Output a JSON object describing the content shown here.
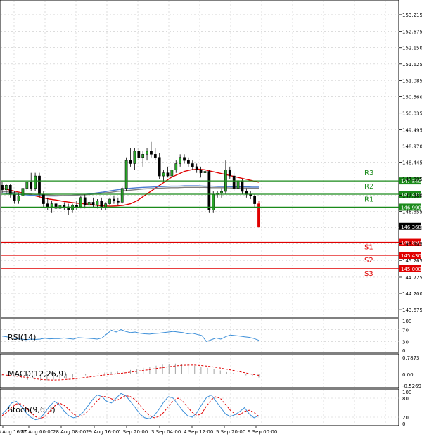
{
  "chart_data": [
    {
      "type": "candlestick",
      "panel": "price",
      "y_axis_ticks": [
        "153.215",
        "152.675",
        "152.150",
        "151.625",
        "151.085",
        "150.560",
        "150.035",
        "149.495",
        "148.970",
        "148.445",
        "147.905",
        "147.380",
        "146.855",
        "146.330",
        "145.805",
        "145.265",
        "144.725",
        "144.200",
        "143.675"
      ],
      "ylim": [
        143.45,
        153.6
      ],
      "current_price": "146.368",
      "levels": [
        {
          "name": "R3",
          "value": "147.840",
          "value_num": 147.84,
          "color": "#1a8a1a"
        },
        {
          "name": "R2",
          "value": "147.410",
          "value_num": 147.41,
          "color": "#1a8a1a"
        },
        {
          "name": "R1",
          "value": "146.990",
          "value_num": 146.99,
          "color": "#1a8a1a"
        },
        {
          "name": "S1",
          "value": "145.850",
          "value_num": 145.85,
          "color": "#e00000"
        },
        {
          "name": "S2",
          "value": "145.430",
          "value_num": 145.43,
          "color": "#e00000"
        },
        {
          "name": "S3",
          "value": "145.000",
          "value_num": 145.0,
          "color": "#e00000"
        }
      ],
      "x_tick_labels": [
        "26 Aug 16:00",
        "27 Aug 00:00",
        "28 Aug 08:00",
        "29 Aug 16:00",
        "1 Sep 20:00",
        "3 Sep 04:00",
        "4 Sep 12:00",
        "5 Sep 20:00",
        "9 Sep 00:00"
      ],
      "candles": [
        [
          147.7,
          147.8,
          147.45,
          147.55
        ],
        [
          147.55,
          147.75,
          147.4,
          147.7
        ],
        [
          147.7,
          147.75,
          147.3,
          147.4
        ],
        [
          147.4,
          147.5,
          147.1,
          147.2
        ],
        [
          147.2,
          147.45,
          147.1,
          147.35
        ],
        [
          147.35,
          147.7,
          147.3,
          147.6
        ],
        [
          147.6,
          147.85,
          147.5,
          147.8
        ],
        [
          147.8,
          148.1,
          147.5,
          147.6
        ],
        [
          147.6,
          148.1,
          147.5,
          148.0
        ],
        [
          148.0,
          148.1,
          147.3,
          147.4
        ],
        [
          147.4,
          147.5,
          147.0,
          147.1
        ],
        [
          147.1,
          147.3,
          146.9,
          147.0
        ],
        [
          147.0,
          147.2,
          146.8,
          147.1
        ],
        [
          147.1,
          147.2,
          146.85,
          146.95
        ],
        [
          146.95,
          147.1,
          146.8,
          147.05
        ],
        [
          147.05,
          147.15,
          146.9,
          147.0
        ],
        [
          147.0,
          147.1,
          146.75,
          146.9
        ],
        [
          146.9,
          147.1,
          146.8,
          147.05
        ],
        [
          147.05,
          147.2,
          146.9,
          147.0
        ],
        [
          147.0,
          147.35,
          146.95,
          147.3
        ],
        [
          147.3,
          147.4,
          146.95,
          147.05
        ],
        [
          147.05,
          147.2,
          146.9,
          147.15
        ],
        [
          147.15,
          147.3,
          147.0,
          147.05
        ],
        [
          147.05,
          147.25,
          146.95,
          147.2
        ],
        [
          147.2,
          147.3,
          146.9,
          147.0
        ],
        [
          147.0,
          147.15,
          146.9,
          147.1
        ],
        [
          147.1,
          147.3,
          147.05,
          147.25
        ],
        [
          147.25,
          147.35,
          147.1,
          147.2
        ],
        [
          147.2,
          147.3,
          147.05,
          147.15
        ],
        [
          147.15,
          147.65,
          147.1,
          147.6
        ],
        [
          147.6,
          148.6,
          147.5,
          148.5
        ],
        [
          148.5,
          148.9,
          148.3,
          148.4
        ],
        [
          148.4,
          148.9,
          148.2,
          148.8
        ],
        [
          148.8,
          148.9,
          148.5,
          148.6
        ],
        [
          148.6,
          148.8,
          148.3,
          148.7
        ],
        [
          148.7,
          148.9,
          148.5,
          148.8
        ],
        [
          148.8,
          149.1,
          148.6,
          148.7
        ],
        [
          148.7,
          148.9,
          148.5,
          148.6
        ],
        [
          148.6,
          148.75,
          147.9,
          148.0
        ],
        [
          148.0,
          148.2,
          147.8,
          148.1
        ],
        [
          148.1,
          148.3,
          147.95,
          148.0
        ],
        [
          148.0,
          148.3,
          147.9,
          148.2
        ],
        [
          148.2,
          148.5,
          148.1,
          148.4
        ],
        [
          148.4,
          148.7,
          148.3,
          148.6
        ],
        [
          148.6,
          148.7,
          148.4,
          148.5
        ],
        [
          148.5,
          148.6,
          148.3,
          148.4
        ],
        [
          148.4,
          148.5,
          148.2,
          148.3
        ],
        [
          148.3,
          148.4,
          148.1,
          148.2
        ],
        [
          148.2,
          148.3,
          147.95,
          148.1
        ],
        [
          148.1,
          148.25,
          147.9,
          148.15
        ],
        [
          148.15,
          148.2,
          146.8,
          146.9
        ],
        [
          146.9,
          147.5,
          146.8,
          147.4
        ],
        [
          147.4,
          147.5,
          147.3,
          147.45
        ],
        [
          147.45,
          147.6,
          147.3,
          147.5
        ],
        [
          147.5,
          148.5,
          147.4,
          148.2
        ],
        [
          148.2,
          148.3,
          147.9,
          148.0
        ],
        [
          148.0,
          148.1,
          147.5,
          147.6
        ],
        [
          147.6,
          147.9,
          147.5,
          147.85
        ],
        [
          147.85,
          147.9,
          147.4,
          147.5
        ],
        [
          147.5,
          147.6,
          147.3,
          147.4
        ],
        [
          147.4,
          147.5,
          147.25,
          147.35
        ],
        [
          147.35,
          147.4,
          147.0,
          147.1
        ],
        [
          147.1,
          147.2,
          146.33,
          146.368
        ]
      ],
      "moving_averages": [
        {
          "color": "#e00000",
          "values": [
            147.6,
            147.55,
            147.5,
            147.45,
            147.4,
            147.35,
            147.3,
            147.25,
            147.22,
            147.18,
            147.15,
            147.12,
            147.1,
            147.08,
            147.05,
            147.03,
            147.02,
            147.03,
            147.05,
            147.1,
            147.2,
            147.35,
            147.5,
            147.65,
            147.8,
            147.95,
            148.05,
            148.15,
            148.2,
            148.22,
            148.2,
            148.15,
            148.1,
            148.05,
            148.0,
            147.95,
            147.9,
            147.85,
            147.8
          ]
        },
        {
          "color": "#4a7bd0",
          "values": [
            147.45,
            147.43,
            147.41,
            147.4,
            147.38,
            147.37,
            147.36,
            147.35,
            147.35,
            147.36,
            147.37,
            147.38,
            147.4,
            147.42,
            147.45,
            147.48,
            147.52,
            147.55,
            147.58,
            147.6,
            147.62,
            147.63,
            147.64,
            147.65,
            147.66,
            147.67,
            147.67,
            147.68,
            147.68,
            147.68,
            147.67,
            147.67,
            147.66,
            147.66,
            147.65,
            147.65,
            147.65,
            147.64,
            147.64
          ]
        },
        {
          "color": "#808080",
          "values": [
            147.5,
            147.48,
            147.46,
            147.44,
            147.42,
            147.4,
            147.39,
            147.38,
            147.37,
            147.37,
            147.37,
            147.38,
            147.39,
            147.4,
            147.42,
            147.45,
            147.47,
            147.5,
            147.52,
            147.54,
            147.56,
            147.58,
            147.59,
            147.6,
            147.61,
            147.62,
            147.62,
            147.63,
            147.63,
            147.63,
            147.63,
            147.62,
            147.62,
            147.62,
            147.61,
            147.61,
            147.61,
            147.6,
            147.6
          ]
        }
      ]
    },
    {
      "type": "line",
      "panel": "rsi",
      "label": "RSI(14)",
      "y_axis_ticks": [
        "100",
        "70",
        "30",
        "0"
      ],
      "ylim": [
        0,
        100
      ],
      "values": [
        48,
        46,
        42,
        40,
        38,
        36,
        38,
        37,
        38,
        41,
        39,
        40,
        40,
        42,
        40,
        38,
        43,
        42,
        41,
        40,
        38,
        42,
        55,
        68,
        62,
        70,
        64,
        60,
        62,
        58,
        56,
        55,
        57,
        58,
        60,
        62,
        64,
        62,
        60,
        56,
        58,
        54,
        50,
        30,
        36,
        42,
        38,
        46,
        52,
        50,
        48,
        46,
        44,
        40,
        34
      ]
    },
    {
      "type": "histogram",
      "panel": "macd",
      "label": "MACD(12,26,9)",
      "y_axis_ticks": [
        "0.7873",
        "0.00",
        "-0.5269"
      ],
      "ylim": [
        -0.5269,
        0.7873
      ],
      "values": [
        -0.05,
        -0.1,
        -0.15,
        -0.2,
        -0.25,
        -0.28,
        -0.3,
        -0.28,
        -0.25,
        -0.22,
        -0.2,
        -0.15,
        -0.1,
        -0.05,
        0.0,
        0.05,
        0.08,
        0.1,
        0.12,
        0.15,
        0.2,
        0.25,
        0.3,
        0.35,
        0.4,
        0.45,
        0.48,
        0.5,
        0.48,
        0.45,
        0.4,
        0.35,
        0.3,
        0.25,
        0.18,
        0.1,
        0.05,
        0.0,
        -0.05,
        -0.1,
        -0.15
      ],
      "signal": [
        -0.02,
        -0.05,
        -0.08,
        -0.12,
        -0.16,
        -0.2,
        -0.24,
        -0.26,
        -0.27,
        -0.26,
        -0.24,
        -0.22,
        -0.19,
        -0.15,
        -0.11,
        -0.07,
        -0.03,
        0.0,
        0.03,
        0.06,
        0.1,
        0.14,
        0.18,
        0.22,
        0.27,
        0.31,
        0.35,
        0.39,
        0.42,
        0.43,
        0.43,
        0.41,
        0.38,
        0.34,
        0.29,
        0.24,
        0.18,
        0.12,
        0.06,
        0.0,
        -0.05
      ]
    },
    {
      "type": "line",
      "panel": "stoch",
      "label": "Stoch(9,6,3)",
      "y_axis_ticks": [
        "100",
        "80",
        "20",
        "0"
      ],
      "ylim": [
        0,
        100
      ],
      "series": [
        {
          "color": "#3b8ed8",
          "dash": false,
          "values": [
            30,
            45,
            65,
            70,
            55,
            35,
            20,
            12,
            15,
            35,
            55,
            70,
            60,
            40,
            25,
            18,
            22,
            35,
            55,
            75,
            90,
            85,
            70,
            65,
            80,
            95,
            88,
            70,
            50,
            30,
            18,
            15,
            25,
            45,
            68,
            85,
            80,
            60,
            40,
            25,
            20,
            35,
            60,
            82,
            90,
            70,
            50,
            30,
            22,
            28,
            38,
            50,
            30,
            18,
            25
          ]
        },
        {
          "color": "#e00000",
          "dash": true,
          "values": [
            25,
            35,
            50,
            62,
            62,
            50,
            35,
            22,
            15,
            22,
            38,
            55,
            65,
            58,
            45,
            30,
            22,
            25,
            38,
            55,
            72,
            85,
            85,
            78,
            72,
            80,
            88,
            85,
            75,
            58,
            40,
            25,
            18,
            22,
            35,
            55,
            72,
            80,
            70,
            52,
            35,
            25,
            32,
            55,
            75,
            85,
            78,
            60,
            42,
            30,
            28,
            38,
            42,
            35,
            22
          ]
        }
      ]
    }
  ]
}
